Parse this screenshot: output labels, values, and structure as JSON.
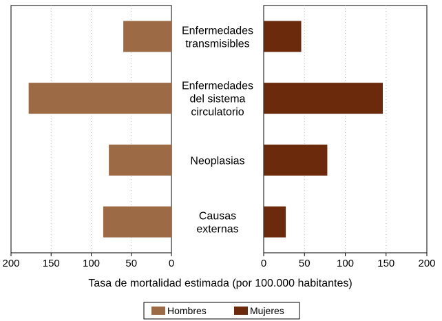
{
  "chart_data": {
    "type": "bar",
    "orientation": "horizontal",
    "layout": "back-to-back",
    "categories": [
      [
        "Enfermedades",
        "transmisibles"
      ],
      [
        "Enfermedades",
        "del sistema",
        "circulatorio"
      ],
      [
        "Neoplasias"
      ],
      [
        "Causas",
        "externas"
      ]
    ],
    "series": [
      {
        "name": "Hombres",
        "color": "#9c6a45",
        "values": [
          60,
          178,
          78,
          85
        ],
        "side": "left"
      },
      {
        "name": "Mujeres",
        "color": "#6b2a0b",
        "values": [
          46,
          146,
          78,
          27
        ],
        "side": "right"
      }
    ],
    "xlim": [
      0,
      200
    ],
    "xticks": [
      0,
      50,
      100,
      150,
      200
    ],
    "xlabel": "Tasa de mortalidad estimada (por 100.000 habitantes)",
    "grid": "vertical dotted",
    "legend": "bottom-center"
  }
}
